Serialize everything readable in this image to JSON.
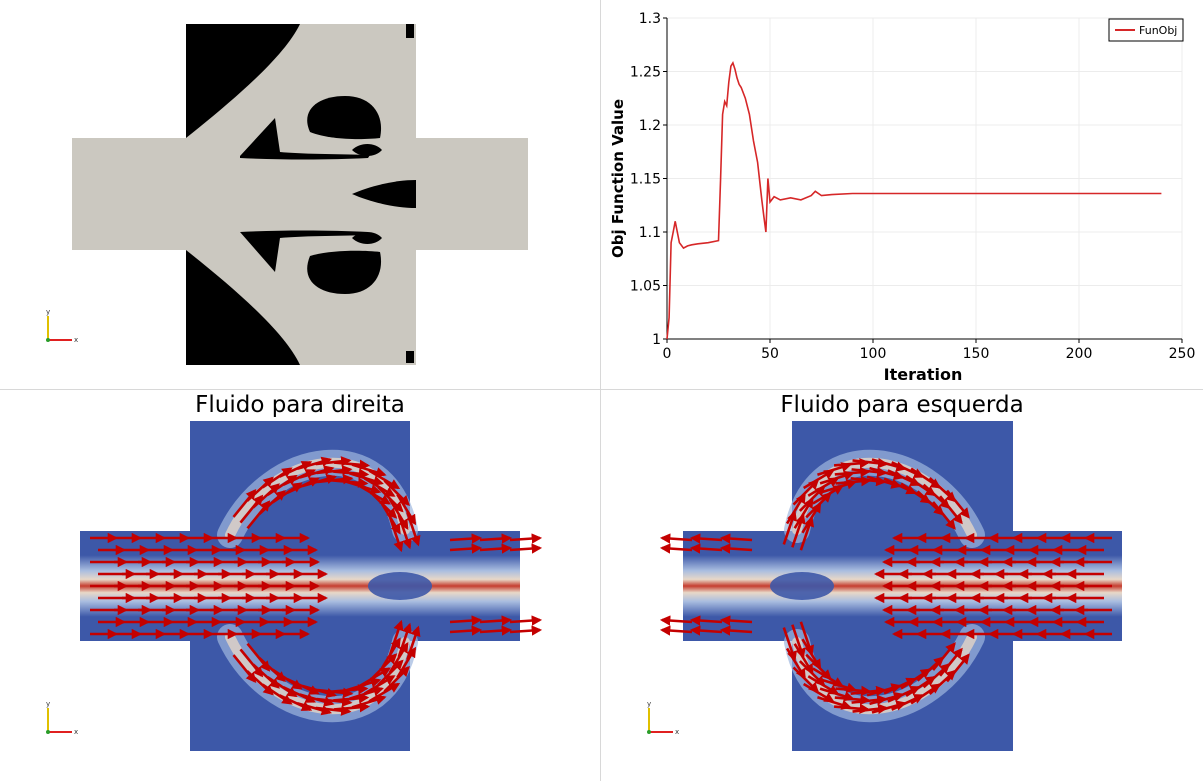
{
  "panels": {
    "topology": {
      "name": "topology-view"
    },
    "chart": {
      "name": "objective-chart"
    },
    "flow_right": {
      "title": "Fluido para direita"
    },
    "flow_left": {
      "title": "Fluido para esquerda"
    }
  },
  "colors": {
    "solid": "#000000",
    "fluid": "#cbc8c0",
    "flow_low": "#3d58a8",
    "flow_high": "#c53d2f",
    "arrow": "#c40000",
    "series": "#d62728"
  },
  "axes_triad": {
    "x": "x",
    "y": "y",
    "z": "z"
  },
  "chart_data": {
    "type": "line",
    "xlabel": "Iteration",
    "ylabel": "Obj Function Value",
    "xlim": [
      0,
      250
    ],
    "ylim": [
      1,
      1.3
    ],
    "xticks": [
      0,
      50,
      100,
      150,
      200,
      250
    ],
    "yticks": [
      1,
      1.05,
      1.1,
      1.15,
      1.2,
      1.25,
      1.3
    ],
    "grid": true,
    "legend": "top-right",
    "series": [
      {
        "name": "FunObj",
        "x": [
          0,
          1,
          2,
          3,
          4,
          5,
          6,
          8,
          10,
          12,
          15,
          20,
          25,
          26,
          27,
          28,
          29,
          30,
          31,
          32,
          33,
          34,
          35,
          36,
          38,
          40,
          42,
          44,
          46,
          47,
          48,
          49,
          50,
          52,
          55,
          60,
          65,
          70,
          72,
          75,
          80,
          90,
          100,
          150,
          200,
          240
        ],
        "y": [
          1.0,
          1.02,
          1.09,
          1.1,
          1.11,
          1.1,
          1.09,
          1.085,
          1.087,
          1.088,
          1.089,
          1.09,
          1.092,
          1.15,
          1.21,
          1.222,
          1.218,
          1.24,
          1.255,
          1.258,
          1.252,
          1.244,
          1.238,
          1.235,
          1.225,
          1.21,
          1.185,
          1.165,
          1.13,
          1.115,
          1.1,
          1.15,
          1.128,
          1.133,
          1.13,
          1.132,
          1.13,
          1.134,
          1.138,
          1.134,
          1.135,
          1.136,
          1.136,
          1.136,
          1.136,
          1.136
        ]
      }
    ]
  }
}
